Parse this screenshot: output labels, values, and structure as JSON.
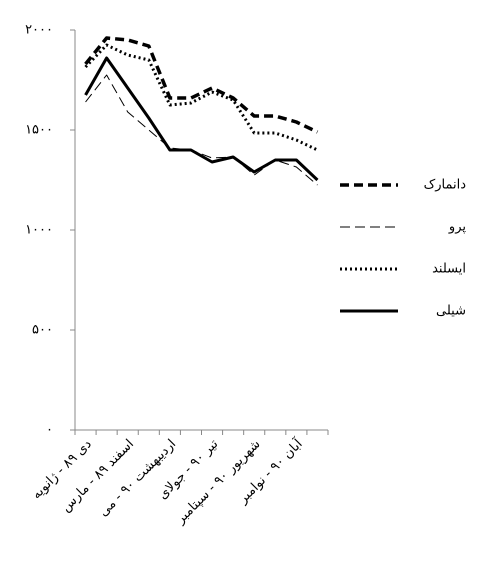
{
  "chart_data": {
    "type": "line",
    "categories": [
      "دی ۸۹ - ژانویه",
      null,
      "اسفند ۸۹ - مارس",
      null,
      "اردیبهشت ۹۰ - می",
      null,
      "تیر ۹۰ - جولای",
      null,
      "شهریور ۹۰ - سپتامبر",
      null,
      "آبان ۹۰ - نوامبر",
      null
    ],
    "series": [
      {
        "name": "دانمارک",
        "color": "#000000",
        "style": "bold-dash",
        "values": [
          1830,
          1960,
          1950,
          1920,
          1660,
          1660,
          1710,
          1660,
          1570,
          1570,
          1540,
          1490
        ]
      },
      {
        "name": "پرو",
        "color": "#000000",
        "style": "dash",
        "values": [
          1640,
          1775,
          1590,
          1500,
          1410,
          1400,
          1360,
          1365,
          1275,
          1350,
          1315,
          1225
        ]
      },
      {
        "name": "ایسلند",
        "color": "#000000",
        "style": "dot",
        "values": [
          1815,
          1925,
          1875,
          1850,
          1625,
          1635,
          1690,
          1650,
          1485,
          1485,
          1450,
          1400
        ]
      },
      {
        "name": "شیلی",
        "color": "#000000",
        "style": "solid",
        "values": [
          1675,
          1860,
          1710,
          1560,
          1400,
          1400,
          1340,
          1365,
          1290,
          1350,
          1350,
          1250
        ]
      }
    ],
    "ylim": [
      0,
      2000
    ],
    "yticks": [
      {
        "value": 0,
        "label": "۰"
      },
      {
        "value": 500,
        "label": "۵۰۰"
      },
      {
        "value": 1000,
        "label": "۱۰۰۰"
      },
      {
        "value": 1500,
        "label": "۱۵۰۰"
      },
      {
        "value": 2000,
        "label": "۲۰۰۰"
      }
    ],
    "legend": "right"
  }
}
